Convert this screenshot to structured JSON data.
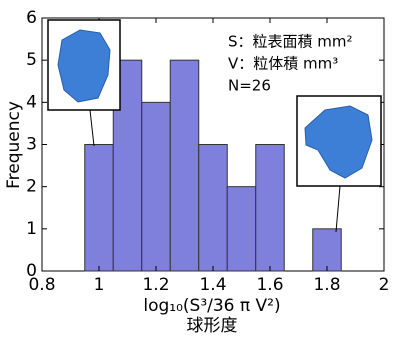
{
  "chart_data": {
    "type": "histogram",
    "bins": [
      0.95,
      1.05,
      1.15,
      1.25,
      1.35,
      1.45,
      1.55,
      1.65,
      1.75,
      1.85
    ],
    "counts": [
      3,
      5,
      4,
      5,
      3,
      2,
      3,
      0,
      1
    ],
    "color": "#7f7fdc",
    "xlim": [
      0.8,
      2
    ],
    "xticks": [
      0.8,
      1,
      1.2,
      1.4,
      1.6,
      1.8,
      2
    ],
    "ylim": [
      0,
      6
    ],
    "yticks": [
      0,
      1,
      2,
      3,
      4,
      5,
      6
    ],
    "y_label": "Frequency",
    "x_label": "log₁₀(S³/36 π V²)",
    "x_label_sub": "球形度",
    "annotations": [
      "S：粒表面積 mm²",
      "V：粒体積 mm³",
      "N=26"
    ]
  }
}
